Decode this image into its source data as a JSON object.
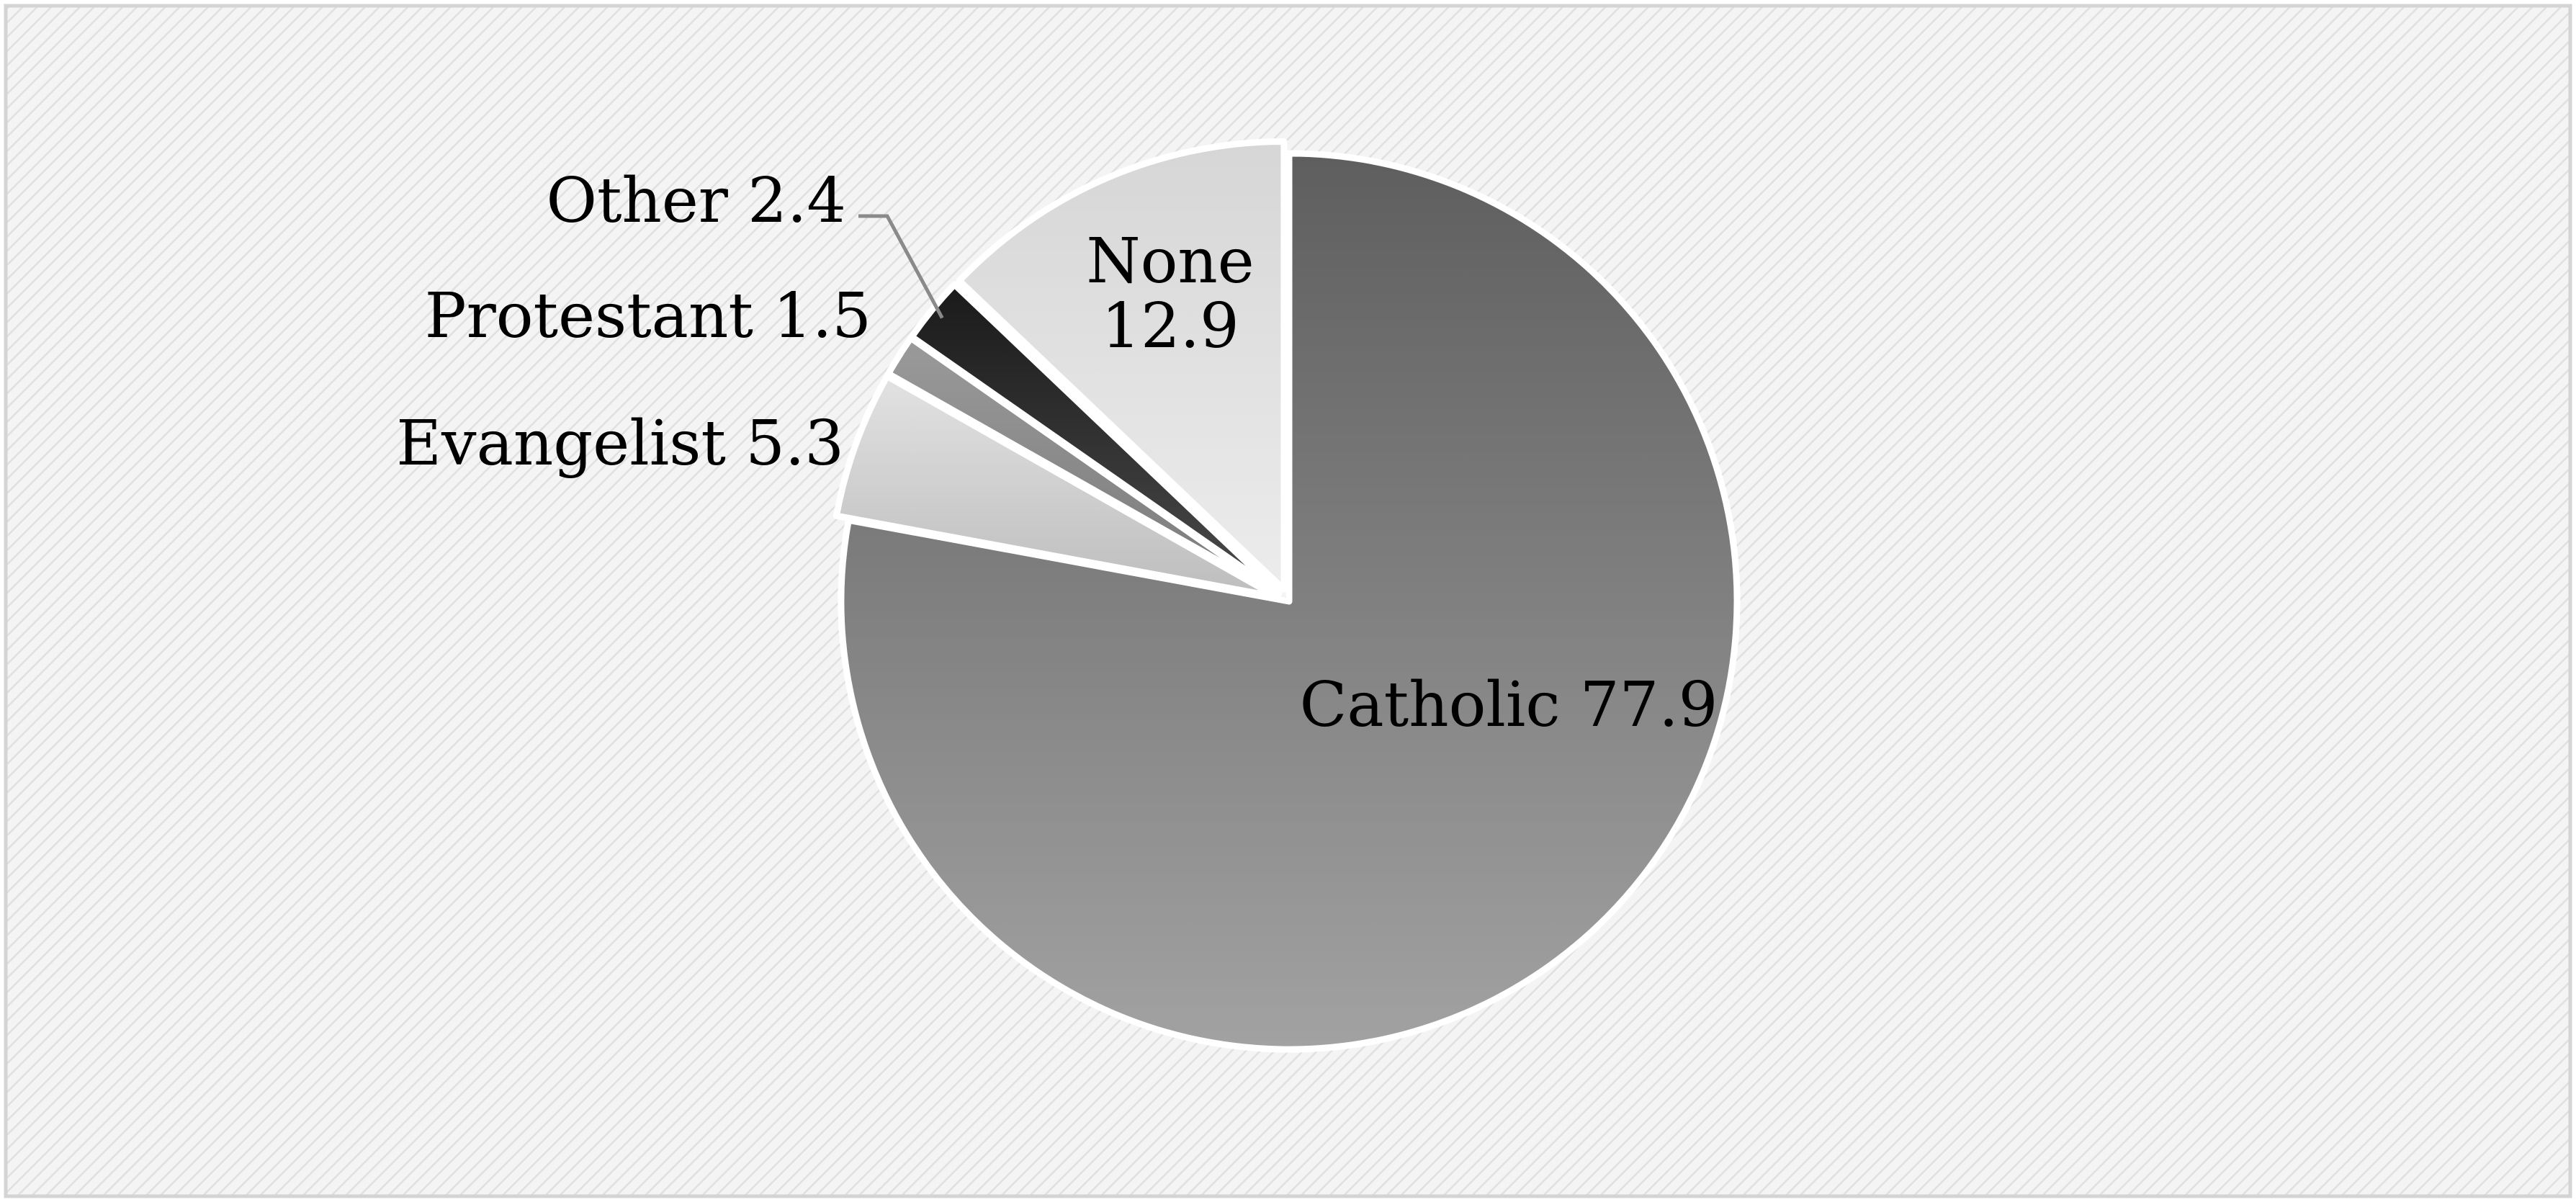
{
  "chart_data": {
    "type": "pie",
    "title": "",
    "slices": [
      {
        "label": "Catholic",
        "value": 77.9,
        "display": "Catholic 77.9",
        "color": "#8a8a8a"
      },
      {
        "label": "Evangelist",
        "value": 5.3,
        "display": "Evangelist 5.3",
        "color": "#c8c8c8"
      },
      {
        "label": "Protestant",
        "value": 1.5,
        "display": "Protestant 1.5",
        "color": "#8c8c8c"
      },
      {
        "label": "Other",
        "value": 2.4,
        "display": "Other  2.4",
        "color": "#2b2b2b"
      },
      {
        "label": "None",
        "value": 12.9,
        "display_lines": [
          "None",
          "12.9"
        ],
        "color": "#dcdcdc"
      }
    ],
    "start": "12 o'clock",
    "direction": "clockwise",
    "legend": "none",
    "background": "light gray diagonal hatch with thin border",
    "separator_color": "#ffffff"
  }
}
